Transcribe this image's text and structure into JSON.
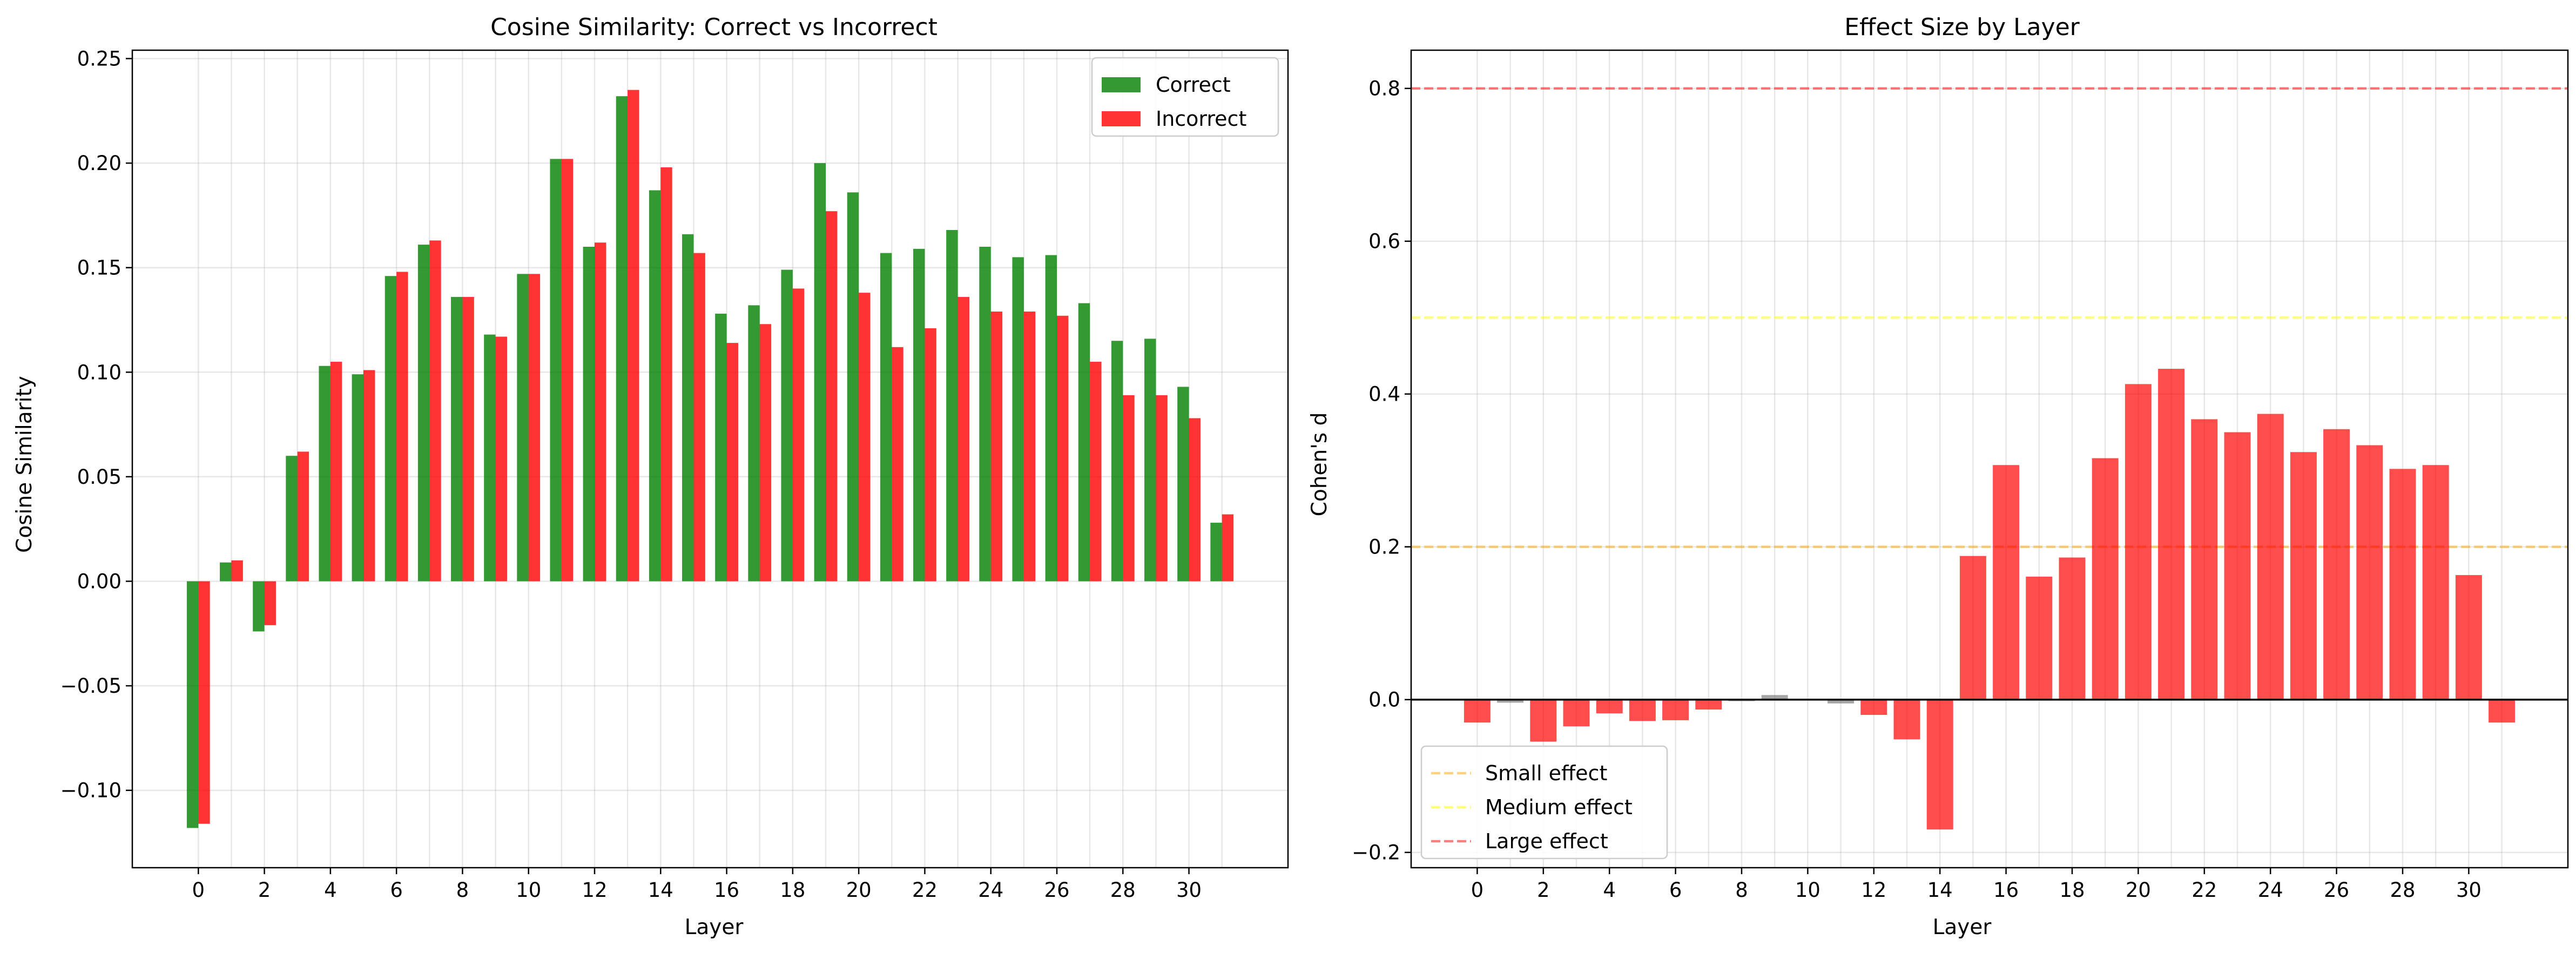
{
  "chart_data": [
    {
      "type": "bar",
      "title": "Cosine Similarity: Correct vs Incorrect",
      "xlabel": "Layer",
      "ylabel": "Cosine Similarity",
      "xlim": [
        -2,
        33
      ],
      "ylim": [
        -0.137,
        0.254
      ],
      "xticks": [
        0,
        2,
        4,
        6,
        8,
        10,
        12,
        14,
        16,
        18,
        20,
        22,
        24,
        26,
        28,
        30
      ],
      "yticks": [
        -0.1,
        -0.05,
        0.0,
        0.05,
        0.1,
        0.15,
        0.2,
        0.25
      ],
      "ytick_labels": [
        "−0.10",
        "−0.05",
        "0.00",
        "0.05",
        "0.10",
        "0.15",
        "0.20",
        "0.25"
      ],
      "legend_position": "top-right",
      "categories": [
        0,
        1,
        2,
        3,
        4,
        5,
        6,
        7,
        8,
        9,
        10,
        11,
        12,
        13,
        14,
        15,
        16,
        17,
        18,
        19,
        20,
        21,
        22,
        23,
        24,
        25,
        26,
        27,
        28,
        29,
        30,
        31
      ],
      "series": [
        {
          "name": "Correct",
          "color": "#008000",
          "values": [
            -0.118,
            0.009,
            -0.024,
            0.06,
            0.103,
            0.099,
            0.146,
            0.161,
            0.136,
            0.118,
            0.147,
            0.202,
            0.16,
            0.232,
            0.187,
            0.166,
            0.128,
            0.132,
            0.149,
            0.2,
            0.186,
            0.157,
            0.159,
            0.168,
            0.16,
            0.155,
            0.156,
            0.133,
            0.115,
            0.116,
            0.093,
            0.028
          ]
        },
        {
          "name": "Incorrect",
          "color": "#ff0000",
          "values": [
            -0.116,
            0.01,
            -0.021,
            0.062,
            0.105,
            0.101,
            0.148,
            0.163,
            0.136,
            0.117,
            0.147,
            0.202,
            0.162,
            0.235,
            0.198,
            0.157,
            0.114,
            0.123,
            0.14,
            0.177,
            0.138,
            0.112,
            0.121,
            0.136,
            0.129,
            0.129,
            0.127,
            0.105,
            0.089,
            0.089,
            0.078,
            0.032
          ]
        }
      ]
    },
    {
      "type": "bar",
      "title": "Effect Size by Layer",
      "xlabel": "Layer",
      "ylabel": "Cohen's d",
      "xlim": [
        -2,
        33
      ],
      "ylim": [
        -0.22,
        0.85
      ],
      "xticks": [
        0,
        2,
        4,
        6,
        8,
        10,
        12,
        14,
        16,
        18,
        20,
        22,
        24,
        26,
        28,
        30
      ],
      "yticks": [
        -0.2,
        0.0,
        0.2,
        0.4,
        0.6,
        0.8
      ],
      "ytick_labels": [
        "−0.2",
        "0.0",
        "0.2",
        "0.4",
        "0.6",
        "0.8"
      ],
      "legend_position": "bottom-left",
      "categories": [
        0,
        1,
        2,
        3,
        4,
        5,
        6,
        7,
        8,
        9,
        10,
        11,
        12,
        13,
        14,
        15,
        16,
        17,
        18,
        19,
        20,
        21,
        22,
        23,
        24,
        25,
        26,
        27,
        28,
        29,
        30,
        31
      ],
      "values": [
        -0.03,
        -0.004,
        -0.055,
        -0.035,
        -0.018,
        -0.028,
        -0.027,
        -0.013,
        -0.002,
        0.006,
        -0.001,
        -0.005,
        -0.02,
        -0.052,
        -0.17,
        0.188,
        0.307,
        0.161,
        0.186,
        0.316,
        0.413,
        0.433,
        0.367,
        0.35,
        0.374,
        0.324,
        0.354,
        0.333,
        0.302,
        0.307,
        0.163,
        -0.03
      ],
      "positive_color": "#ff0000",
      "negligible_color": "#808080",
      "reference_lines": [
        {
          "name": "Small effect",
          "value": 0.2,
          "color": "#ffa500"
        },
        {
          "name": "Medium effect",
          "value": 0.5,
          "color": "#ffff00"
        },
        {
          "name": "Large effect",
          "value": 0.8,
          "color": "#ff0000"
        }
      ]
    }
  ]
}
